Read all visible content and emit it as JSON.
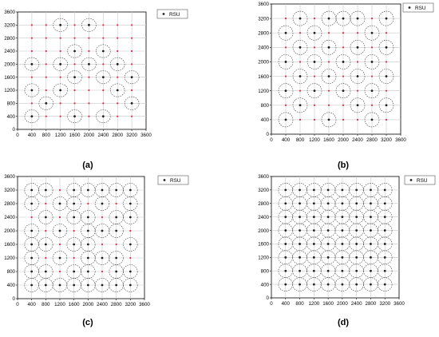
{
  "captions": [
    "(a)",
    "(b)",
    "(c)",
    "(d)"
  ],
  "legend_label": "RSU",
  "colors": {
    "grid": "#c8c8c8",
    "cross_points": "#e8274b",
    "rsu_marker": "#222222",
    "coverage_circle": "#444444",
    "axis": "#000000"
  },
  "chart_data": [
    {
      "type": "scatter",
      "caption": "(a)",
      "xlim": [
        0,
        3600
      ],
      "ylim": [
        0,
        3600
      ],
      "xticks": [
        0,
        400,
        800,
        1200,
        1600,
        2000,
        2400,
        2800,
        3200,
        3600
      ],
      "yticks": [
        0,
        400,
        800,
        1200,
        1600,
        2000,
        2400,
        2800,
        3200,
        3600
      ],
      "grid": true,
      "legend": "top-right",
      "coverage_radius": 200,
      "series": [
        {
          "name": "RSU",
          "points": [
            [
              1200,
              3200
            ],
            [
              2000,
              3200
            ],
            [
              1600,
              2400
            ],
            [
              2400,
              2400
            ],
            [
              400,
              2000
            ],
            [
              1200,
              2000
            ],
            [
              2000,
              2000
            ],
            [
              2800,
              2000
            ],
            [
              1600,
              1600
            ],
            [
              2400,
              1600
            ],
            [
              3200,
              1600
            ],
            [
              400,
              1200
            ],
            [
              1200,
              1200
            ],
            [
              2800,
              1200
            ],
            [
              800,
              800
            ],
            [
              3200,
              800
            ],
            [
              400,
              400
            ],
            [
              1600,
              400
            ],
            [
              2400,
              400
            ]
          ]
        }
      ]
    },
    {
      "type": "scatter",
      "caption": "(b)",
      "xlim": [
        0,
        3600
      ],
      "ylim": [
        0,
        3600
      ],
      "xticks": [
        0,
        400,
        800,
        1200,
        1600,
        2000,
        2400,
        2800,
        3200,
        3600
      ],
      "yticks": [
        0,
        400,
        800,
        1200,
        1600,
        2000,
        2400,
        2800,
        3200,
        3600
      ],
      "grid": true,
      "legend": "top-right",
      "coverage_radius": 200,
      "series": [
        {
          "name": "RSU",
          "points": [
            [
              800,
              3200
            ],
            [
              1600,
              3200
            ],
            [
              2000,
              3200
            ],
            [
              2400,
              3200
            ],
            [
              3200,
              3200
            ],
            [
              400,
              2800
            ],
            [
              1200,
              2800
            ],
            [
              2800,
              2800
            ],
            [
              800,
              2400
            ],
            [
              1600,
              2400
            ],
            [
              2400,
              2400
            ],
            [
              3200,
              2400
            ],
            [
              400,
              2000
            ],
            [
              1200,
              2000
            ],
            [
              2000,
              2000
            ],
            [
              2800,
              2000
            ],
            [
              800,
              1600
            ],
            [
              1600,
              1600
            ],
            [
              2400,
              1600
            ],
            [
              3200,
              1600
            ],
            [
              400,
              1200
            ],
            [
              1200,
              1200
            ],
            [
              2000,
              1200
            ],
            [
              2800,
              1200
            ],
            [
              800,
              800
            ],
            [
              2400,
              800
            ],
            [
              3200,
              800
            ],
            [
              400,
              400
            ],
            [
              1600,
              400
            ],
            [
              2800,
              400
            ]
          ]
        }
      ]
    },
    {
      "type": "scatter",
      "caption": "(c)",
      "xlim": [
        0,
        3600
      ],
      "ylim": [
        0,
        3600
      ],
      "xticks": [
        0,
        400,
        800,
        1200,
        1600,
        2000,
        2400,
        2800,
        3200,
        3600
      ],
      "yticks": [
        0,
        400,
        800,
        1200,
        1600,
        2000,
        2400,
        2800,
        3200,
        3600
      ],
      "grid": true,
      "legend": "top-right",
      "coverage_radius": 200,
      "series": [
        {
          "name": "RSU",
          "points": [
            [
              400,
              3200
            ],
            [
              800,
              3200
            ],
            [
              1600,
              3200
            ],
            [
              2000,
              3200
            ],
            [
              2400,
              3200
            ],
            [
              2800,
              3200
            ],
            [
              3200,
              3200
            ],
            [
              400,
              2800
            ],
            [
              1200,
              2800
            ],
            [
              1600,
              2800
            ],
            [
              2400,
              2800
            ],
            [
              3200,
              2800
            ],
            [
              800,
              2400
            ],
            [
              1600,
              2400
            ],
            [
              2000,
              2400
            ],
            [
              2800,
              2400
            ],
            [
              3200,
              2400
            ],
            [
              400,
              2000
            ],
            [
              1200,
              2000
            ],
            [
              2000,
              2000
            ],
            [
              2400,
              2000
            ],
            [
              2800,
              2000
            ],
            [
              400,
              1600
            ],
            [
              800,
              1600
            ],
            [
              1600,
              1600
            ],
            [
              2000,
              1600
            ],
            [
              3200,
              1600
            ],
            [
              400,
              1200
            ],
            [
              1200,
              1200
            ],
            [
              2000,
              1200
            ],
            [
              2400,
              1200
            ],
            [
              2800,
              1200
            ],
            [
              400,
              800
            ],
            [
              800,
              800
            ],
            [
              1600,
              800
            ],
            [
              2000,
              800
            ],
            [
              2800,
              800
            ],
            [
              3200,
              800
            ],
            [
              400,
              400
            ],
            [
              800,
              400
            ],
            [
              1200,
              400
            ],
            [
              1600,
              400
            ],
            [
              2000,
              400
            ],
            [
              2400,
              400
            ],
            [
              2800,
              400
            ],
            [
              3200,
              400
            ]
          ]
        }
      ]
    },
    {
      "type": "scatter",
      "caption": "(d)",
      "xlim": [
        0,
        3600
      ],
      "ylim": [
        0,
        3600
      ],
      "xticks": [
        0,
        400,
        800,
        1200,
        1600,
        2000,
        2400,
        2800,
        3200,
        3600
      ],
      "yticks": [
        0,
        400,
        800,
        1200,
        1600,
        2000,
        2400,
        2800,
        3200,
        3600
      ],
      "grid": true,
      "legend": "top-right",
      "coverage_radius": 200,
      "series": [
        {
          "name": "RSU",
          "points": [
            [
              400,
              3200
            ],
            [
              800,
              3200
            ],
            [
              1200,
              3200
            ],
            [
              1600,
              3200
            ],
            [
              2000,
              3200
            ],
            [
              2400,
              3200
            ],
            [
              2800,
              3200
            ],
            [
              3200,
              3200
            ],
            [
              400,
              2800
            ],
            [
              800,
              2800
            ],
            [
              1200,
              2800
            ],
            [
              1600,
              2800
            ],
            [
              2000,
              2800
            ],
            [
              2400,
              2800
            ],
            [
              2800,
              2800
            ],
            [
              3200,
              2800
            ],
            [
              400,
              2400
            ],
            [
              800,
              2400
            ],
            [
              1200,
              2400
            ],
            [
              1600,
              2400
            ],
            [
              2000,
              2400
            ],
            [
              2400,
              2400
            ],
            [
              2800,
              2400
            ],
            [
              3200,
              2400
            ],
            [
              400,
              2000
            ],
            [
              800,
              2000
            ],
            [
              1200,
              2000
            ],
            [
              1600,
              2000
            ],
            [
              2000,
              2000
            ],
            [
              2400,
              2000
            ],
            [
              2800,
              2000
            ],
            [
              3200,
              2000
            ],
            [
              400,
              1600
            ],
            [
              800,
              1600
            ],
            [
              1200,
              1600
            ],
            [
              1600,
              1600
            ],
            [
              2000,
              1600
            ],
            [
              2400,
              1600
            ],
            [
              2800,
              1600
            ],
            [
              3200,
              1600
            ],
            [
              400,
              1200
            ],
            [
              800,
              1200
            ],
            [
              1200,
              1200
            ],
            [
              1600,
              1200
            ],
            [
              2000,
              1200
            ],
            [
              2400,
              1200
            ],
            [
              2800,
              1200
            ],
            [
              3200,
              1200
            ],
            [
              400,
              800
            ],
            [
              800,
              800
            ],
            [
              1200,
              800
            ],
            [
              1600,
              800
            ],
            [
              2000,
              800
            ],
            [
              2400,
              800
            ],
            [
              2800,
              800
            ],
            [
              3200,
              800
            ],
            [
              400,
              400
            ],
            [
              800,
              400
            ],
            [
              1200,
              400
            ],
            [
              1600,
              400
            ],
            [
              2000,
              400
            ],
            [
              2400,
              400
            ],
            [
              2800,
              400
            ],
            [
              3200,
              400
            ]
          ]
        }
      ]
    }
  ]
}
